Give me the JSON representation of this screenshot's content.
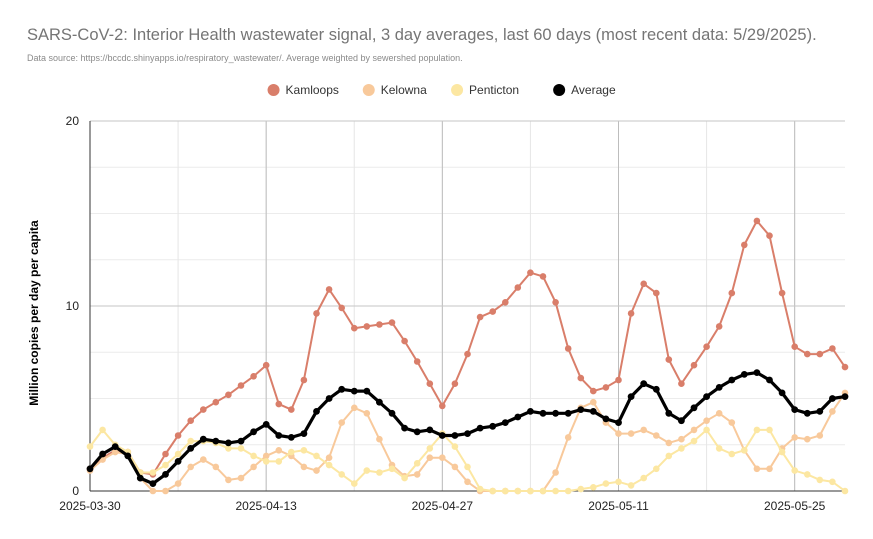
{
  "chart_data": {
    "type": "line",
    "title": "SARS-CoV-2: Interior Health wastewater signal, 3 day averages, last 60 days (most recent data: 5/29/2025).",
    "subtitle": "Data source: https://bccdc.shinyapps.io/respiratory_wastewater/. Average weighted by sewershed population.",
    "xlabel": "",
    "ylabel": "Million copies per day per capita",
    "ylim": [
      0,
      20
    ],
    "yticks": [
      0,
      10,
      20
    ],
    "x_start": "2025-03-30",
    "x_end": "2025-05-29",
    "xtick_labels": [
      "2025-03-30",
      "2025-04-13",
      "2025-04-27",
      "2025-05-11",
      "2025-05-25"
    ],
    "legend_position": "top",
    "grid": true,
    "series": [
      {
        "name": "Kamloops",
        "color": "#d97e6a",
        "values": [
          1.2,
          1.8,
          2.2,
          2.1,
          1.0,
          0.9,
          2.0,
          3.0,
          3.8,
          4.4,
          4.8,
          5.2,
          5.7,
          6.2,
          6.8,
          4.7,
          4.4,
          6.0,
          9.6,
          10.9,
          9.9,
          8.8,
          8.9,
          9.0,
          9.1,
          8.1,
          7.0,
          5.8,
          4.6,
          5.8,
          7.4,
          9.4,
          9.7,
          10.2,
          11.0,
          11.8,
          11.6,
          10.2,
          7.7,
          6.1,
          5.4,
          5.6,
          6.0,
          9.6,
          11.2,
          10.7,
          7.1,
          5.8,
          6.8,
          7.8,
          8.9,
          10.7,
          13.3,
          14.6,
          13.8,
          10.7,
          7.8,
          7.4,
          7.4,
          7.7,
          6.7
        ]
      },
      {
        "name": "Kelowna",
        "color": "#f8c99b",
        "values": [
          1.1,
          1.7,
          2.1,
          2.0,
          0.7,
          0.0,
          0.0,
          0.4,
          1.3,
          1.7,
          1.3,
          0.6,
          0.7,
          1.3,
          1.9,
          2.2,
          1.9,
          1.3,
          1.1,
          1.8,
          3.7,
          4.5,
          4.2,
          2.8,
          1.4,
          0.8,
          0.9,
          1.8,
          1.8,
          1.3,
          0.5,
          0.0,
          0.0,
          0.0,
          0.0,
          0.0,
          0.0,
          1.0,
          2.9,
          4.5,
          4.8,
          3.7,
          3.1,
          3.1,
          3.3,
          3.0,
          2.6,
          2.8,
          3.3,
          3.8,
          4.2,
          3.7,
          2.2,
          1.2,
          1.2,
          2.3,
          2.9,
          2.8,
          3.0,
          4.3,
          5.3
        ]
      },
      {
        "name": "Penticton",
        "color": "#fce7a2",
        "values": [
          2.4,
          3.3,
          2.5,
          2.1,
          1.0,
          1.0,
          1.4,
          2.0,
          2.7,
          2.7,
          2.6,
          2.3,
          2.3,
          1.9,
          1.6,
          1.6,
          2.1,
          2.2,
          1.9,
          1.4,
          0.9,
          0.4,
          1.1,
          1.0,
          1.2,
          0.7,
          1.5,
          2.3,
          3.1,
          2.4,
          1.3,
          0.1,
          0.0,
          0.0,
          0.0,
          0.0,
          0.0,
          0.0,
          0.0,
          0.1,
          0.2,
          0.4,
          0.5,
          0.3,
          0.7,
          1.2,
          1.9,
          2.3,
          2.7,
          3.3,
          2.3,
          2.0,
          2.2,
          3.3,
          3.3,
          2.1,
          1.1,
          0.9,
          0.6,
          0.5,
          0.0
        ]
      },
      {
        "name": "Average",
        "color": "#000000",
        "values": [
          1.2,
          2.0,
          2.4,
          1.9,
          0.7,
          0.4,
          0.9,
          1.6,
          2.3,
          2.8,
          2.7,
          2.6,
          2.7,
          3.2,
          3.6,
          3.0,
          2.9,
          3.1,
          4.3,
          5.0,
          5.5,
          5.4,
          5.4,
          4.8,
          4.2,
          3.4,
          3.2,
          3.3,
          3.0,
          3.0,
          3.1,
          3.4,
          3.5,
          3.7,
          4.0,
          4.3,
          4.2,
          4.2,
          4.2,
          4.4,
          4.3,
          3.9,
          3.7,
          5.1,
          5.8,
          5.5,
          4.2,
          3.8,
          4.5,
          5.1,
          5.6,
          6.0,
          6.3,
          6.4,
          6.0,
          5.3,
          4.4,
          4.2,
          4.3,
          5.0,
          5.1
        ]
      }
    ]
  }
}
